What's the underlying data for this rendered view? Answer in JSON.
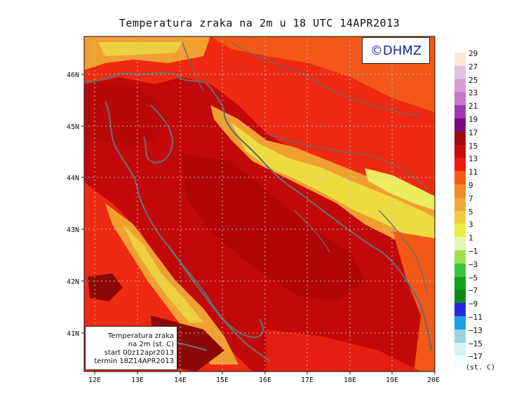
{
  "title": "Temperatura zraka na 2m u 18 UTC 14APR2013",
  "copyright": "©DHMZ",
  "info": {
    "line1": "Temperatura zraka",
    "line2": "na 2m (st. C)",
    "line3": "start 00z12apr2013",
    "line4": "termin 18Z14APR2013"
  },
  "axes": {
    "lon_ticks": [
      "12E",
      "13E",
      "14E",
      "15E",
      "16E",
      "17E",
      "18E",
      "19E",
      "20E"
    ],
    "lat_ticks": [
      "46N",
      "45N",
      "44N",
      "43N",
      "42N",
      "41N"
    ]
  },
  "legend": {
    "unit": "(st. C)",
    "labels": [
      "29",
      "27",
      "25",
      "23",
      "21",
      "19",
      "17",
      "15",
      "13",
      "11",
      "9",
      "7",
      "5",
      "3",
      "1",
      "−1",
      "−3",
      "−5",
      "−7",
      "−9",
      "−11",
      "−13",
      "−15",
      "−17"
    ],
    "colors": [
      "#fbe6d6",
      "#e0c2dc",
      "#d6a0d4",
      "#c878c8",
      "#a038b4",
      "#7a0c80",
      "#a00a0a",
      "#c40c0c",
      "#ee1a10",
      "#f75a14",
      "#f28a28",
      "#f0a838",
      "#eccc3e",
      "#ecec48",
      "#e4f6b6",
      "#9ee050",
      "#3cc640",
      "#10a418",
      "#0c8a18",
      "#2828e0",
      "#1e9ee8",
      "#9cd4e2",
      "#d6f2f2",
      "#f4fefe"
    ]
  },
  "colors": {
    "sea_warm": "#c20808",
    "land_hot": "#e61e10",
    "land_mid": "#f25818",
    "land_cool": "#f0a030",
    "land_cold": "#ece040",
    "coast": "#6b6b6b"
  }
}
